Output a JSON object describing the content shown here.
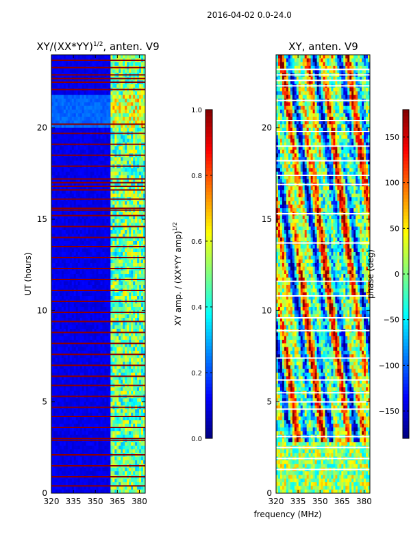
{
  "figure_title": "2016-04-02 0.0-24.0",
  "shared_xlabel": "frequency (MHz)",
  "chart_data": [
    {
      "type": "heatmap",
      "title": "XY/(XX*YY)^{1/2}, anten. V9",
      "title_main": "XY/(XX*YY)",
      "title_exp": "1/2",
      "title_tail": ", anten. V9",
      "xlabel": "",
      "ylabel": "UT (hours)",
      "xlim": [
        320,
        384
      ],
      "ylim": [
        0,
        24
      ],
      "xticks": [
        320,
        335,
        350,
        365,
        380
      ],
      "yticks": [
        0,
        5,
        10,
        15,
        20
      ],
      "colorbar": {
        "label": "XY amp. / (XX*YY amp)^{1/2}",
        "label_main": "XY amp. / (XX*YY amp)",
        "label_exp": "1/2",
        "range": [
          0.0,
          1.0
        ],
        "ticks": [
          "0.0",
          "0.2",
          "0.4",
          "0.6",
          "0.8",
          "1.0"
        ],
        "tick_values": [
          0.0,
          0.2,
          0.4,
          0.6,
          0.8,
          1.0
        ],
        "colormap": "jet"
      },
      "background_value": 0.08,
      "active_band_mhz": [
        360,
        384
      ],
      "flagged_rows_hours": [
        0.4,
        0.9,
        1.5,
        2.1,
        2.9,
        3.0,
        3.6,
        4.2,
        4.7,
        5.3,
        5.9,
        6.4,
        7.0,
        7.6,
        8.2,
        8.8,
        9.4,
        9.9,
        10.5,
        11.1,
        11.7,
        12.3,
        12.9,
        13.5,
        14.0,
        14.6,
        15.2,
        15.5,
        15.6,
        16.1,
        16.6,
        16.8,
        17.0,
        17.2,
        17.9,
        18.5,
        19.1,
        19.7,
        20.2,
        22.1,
        22.5,
        22.7,
        22.9,
        23.3,
        23.7
      ]
    },
    {
      "type": "heatmap",
      "title": "XY, anten. V9",
      "xlabel": "frequency (MHz)",
      "ylabel": "",
      "xlim": [
        320,
        384
      ],
      "ylim": [
        0,
        24
      ],
      "xticks": [
        320,
        335,
        350,
        365,
        380
      ],
      "yticks": [
        0,
        5,
        10,
        15,
        20
      ],
      "colorbar": {
        "label": "phase (deg)",
        "range": [
          -180,
          180
        ],
        "ticks": [
          "−150",
          "−100",
          "−50",
          "0",
          "50",
          "100",
          "150"
        ],
        "tick_values": [
          -150,
          -100,
          -50,
          0,
          50,
          100,
          150
        ],
        "colormap": "jet"
      },
      "flagged_rows_hours": [
        1.3,
        1.9,
        2.5,
        3.1,
        4.6,
        5.0,
        5.5,
        6.2,
        7.4,
        8.9,
        9.6,
        10.8,
        11.6,
        13.7,
        15.3,
        16.9,
        17.4,
        18.2,
        19.0,
        19.8,
        20.4,
        21.5,
        22.3,
        22.6,
        22.9,
        23.2
      ]
    }
  ]
}
